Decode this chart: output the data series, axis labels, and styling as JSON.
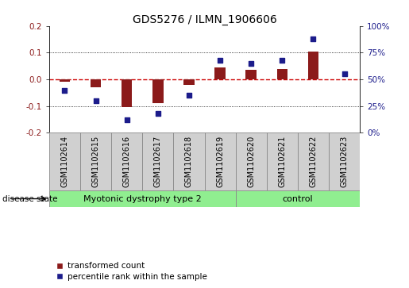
{
  "title": "GDS5276 / ILMN_1906606",
  "samples": [
    "GSM1102614",
    "GSM1102615",
    "GSM1102616",
    "GSM1102617",
    "GSM1102618",
    "GSM1102619",
    "GSM1102620",
    "GSM1102621",
    "GSM1102622",
    "GSM1102623"
  ],
  "transformed_count": [
    -0.01,
    -0.03,
    -0.105,
    -0.09,
    -0.02,
    0.045,
    0.035,
    0.04,
    0.105,
    0.0
  ],
  "percentile_rank": [
    40,
    30,
    12,
    18,
    35,
    68,
    65,
    68,
    88,
    55
  ],
  "groups": [
    {
      "label": "Myotonic dystrophy type 2",
      "start": 0,
      "end": 6,
      "color": "#90EE90"
    },
    {
      "label": "control",
      "start": 6,
      "end": 10,
      "color": "#90EE90"
    }
  ],
  "bar_color": "#8B1A1A",
  "dot_color": "#1C1C8B",
  "zero_line_color": "#CC0000",
  "zero_line_style": "--",
  "dot_line_color": "black",
  "dot_line_style": ":",
  "ylim_left": [
    -0.2,
    0.2
  ],
  "ylim_right": [
    0,
    100
  ],
  "yticks_left": [
    -0.2,
    -0.1,
    0.0,
    0.1,
    0.2
  ],
  "yticks_right": [
    0,
    25,
    50,
    75,
    100
  ],
  "ytick_labels_right": [
    "0%",
    "25%",
    "50%",
    "75%",
    "100%"
  ],
  "disease_state_label": "disease state",
  "legend_bar_label": "transformed count",
  "legend_dot_label": "percentile rank within the sample",
  "title_fontsize": 10,
  "label_fontsize": 7.5,
  "tick_fontsize": 7.5,
  "sample_fontsize": 7.0,
  "group_fontsize": 8.0,
  "bar_width": 0.35,
  "dot_size": 25,
  "sample_label_color": "#D0D0D0",
  "group_border_color": "#888888"
}
